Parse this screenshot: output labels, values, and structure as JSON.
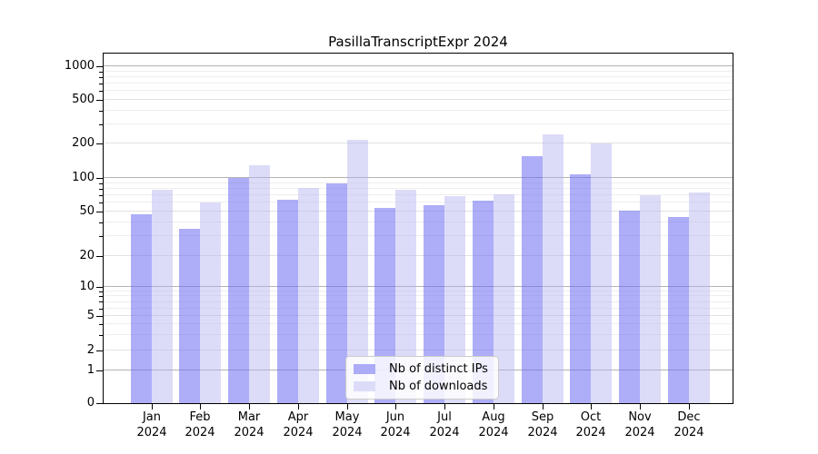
{
  "title": "PasillaTranscriptExpr 2024",
  "legend": {
    "items": [
      {
        "label": "Nb of distinct IPs",
        "color": "#acacf8",
        "fill": "rgba(106,106,242,0.55)"
      },
      {
        "label": "Nb of downloads",
        "color": "#dcdcf8",
        "fill": "rgba(178,178,240,0.45)"
      }
    ]
  },
  "chart_data": {
    "type": "bar",
    "title": "PasillaTranscriptExpr 2024",
    "categories": [
      "Jan 2024",
      "Feb 2024",
      "Mar 2024",
      "Apr 2024",
      "May 2024",
      "Jun 2024",
      "Jul 2024",
      "Aug 2024",
      "Sep 2024",
      "Oct 2024",
      "Nov 2024",
      "Dec 2024"
    ],
    "series": [
      {
        "name": "Nb of distinct IPs",
        "color": "#acacf8",
        "fill": "rgba(106,106,242,0.55)",
        "values": [
          47,
          35,
          100,
          64,
          90,
          54,
          57,
          63,
          155,
          108,
          51,
          45
        ]
      },
      {
        "name": "Nb of downloads",
        "color": "#dcdcf8",
        "fill": "rgba(178,178,240,0.45)",
        "values": [
          78,
          60,
          128,
          81,
          215,
          78,
          69,
          71,
          240,
          200,
          70,
          74
        ]
      }
    ],
    "xlabel": "",
    "ylabel": "",
    "yscale": "symlog",
    "yticks": [
      0,
      1,
      2,
      5,
      10,
      20,
      50,
      100,
      200,
      500,
      1000
    ],
    "ylim": [
      0,
      1150
    ],
    "grid": true,
    "legend_position": "lower center"
  }
}
